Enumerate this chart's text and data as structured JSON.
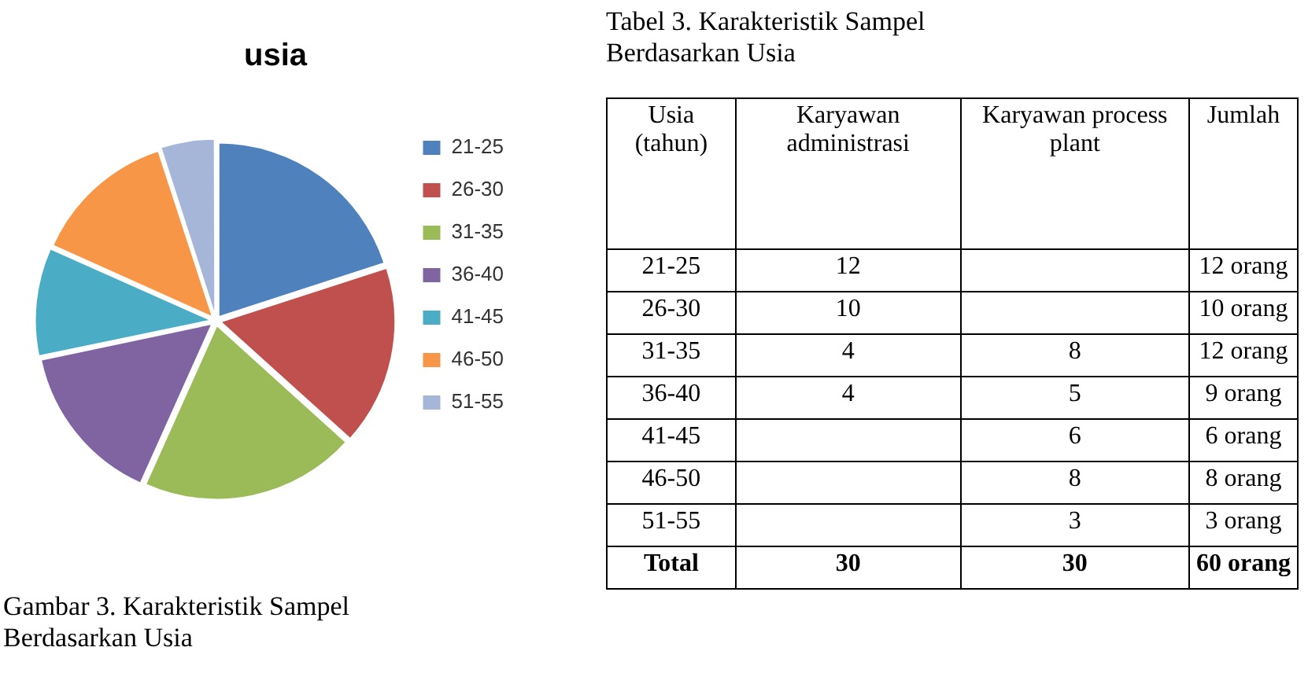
{
  "chart_data": [
    {
      "type": "pie",
      "title": "usia",
      "categories": [
        "21-25",
        "26-30",
        "31-35",
        "36-40",
        "41-45",
        "46-50",
        "51-55"
      ],
      "values": [
        20,
        16.7,
        20,
        15,
        10,
        13.3,
        5
      ],
      "colors": [
        "#4f81bd",
        "#c0504d",
        "#9bbb59",
        "#8064a2",
        "#4bacc6",
        "#f79646",
        "#a5b6d9"
      ],
      "legend": "right",
      "annotations": [
        "Gambar 3. Karakteristik Sampel Berdasarkan Usia"
      ]
    },
    {
      "type": "other",
      "title": "Tabel 3. Karakteristik Sampel Berdasarkan Usia",
      "categories": [
        "Usia (tahun)",
        "Karyawan administrasi",
        "Karyawan process plant",
        "Jumlah"
      ],
      "cell_labels": [
        [
          "21-25",
          "12",
          null,
          "12 orang"
        ],
        [
          "26-30",
          "10",
          null,
          "10 orang"
        ],
        [
          "31-35",
          "4",
          "8",
          "12 orang"
        ],
        [
          "36-40",
          "4",
          "5",
          "9   orang"
        ],
        [
          "41-45",
          null,
          "6",
          "6   orang"
        ],
        [
          "46-50",
          null,
          "8",
          "8   orang"
        ],
        [
          "51-55",
          null,
          "3",
          "3   orang"
        ],
        [
          "Total",
          "30",
          "30",
          "60 orang"
        ]
      ]
    }
  ]
}
